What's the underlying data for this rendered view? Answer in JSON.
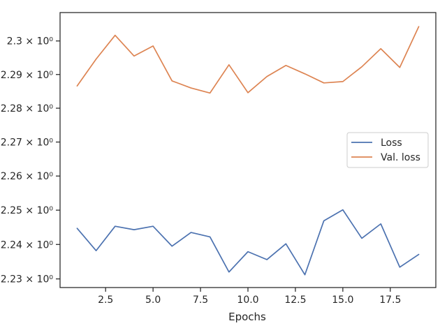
{
  "chart_data": {
    "type": "line",
    "title": "",
    "xlabel": "Epochs",
    "ylabel": "",
    "yscale": "log",
    "xlim": [
      0.1,
      19.9
    ],
    "ylim": [
      2.2275,
      2.3085
    ],
    "grid": false,
    "legend_position": "center-right",
    "x_ticks": [
      2.5,
      5.0,
      7.5,
      10.0,
      12.5,
      15.0,
      17.5
    ],
    "x_tick_labels": [
      "2.5",
      "5.0",
      "7.5",
      "10.0",
      "12.5",
      "15.0",
      "17.5"
    ],
    "y_ticks": [
      2.23,
      2.24,
      2.25,
      2.26,
      2.27,
      2.28,
      2.29,
      2.3
    ],
    "y_tick_labels": [
      "2.23 × 10⁰",
      "2.24 × 10⁰",
      "2.25 × 10⁰",
      "2.26 × 10⁰",
      "2.27 × 10⁰",
      "2.28 × 10⁰",
      "2.29 × 10⁰",
      "2.3 × 10⁰"
    ],
    "x": [
      1,
      2,
      3,
      4,
      5,
      6,
      7,
      8,
      9,
      10,
      11,
      12,
      13,
      14,
      15,
      16,
      17,
      18,
      19
    ],
    "series": [
      {
        "name": "Loss",
        "color": "#4c72b0",
        "values": [
          2.2447,
          2.2382,
          2.2453,
          2.2443,
          2.2453,
          2.2395,
          2.2435,
          2.2422,
          2.232,
          2.2379,
          2.2356,
          2.2402,
          2.2312,
          2.2469,
          2.2501,
          2.2418,
          2.246,
          2.2334,
          2.2371
        ]
      },
      {
        "name": "Val. loss",
        "color": "#dd8452",
        "values": [
          2.2866,
          2.2946,
          2.3017,
          2.2955,
          2.2985,
          2.2881,
          2.286,
          2.2845,
          2.2929,
          2.2846,
          2.2894,
          2.2927,
          2.2902,
          2.2875,
          2.2879,
          2.2923,
          2.2977,
          2.2921,
          2.3043
        ]
      }
    ]
  }
}
